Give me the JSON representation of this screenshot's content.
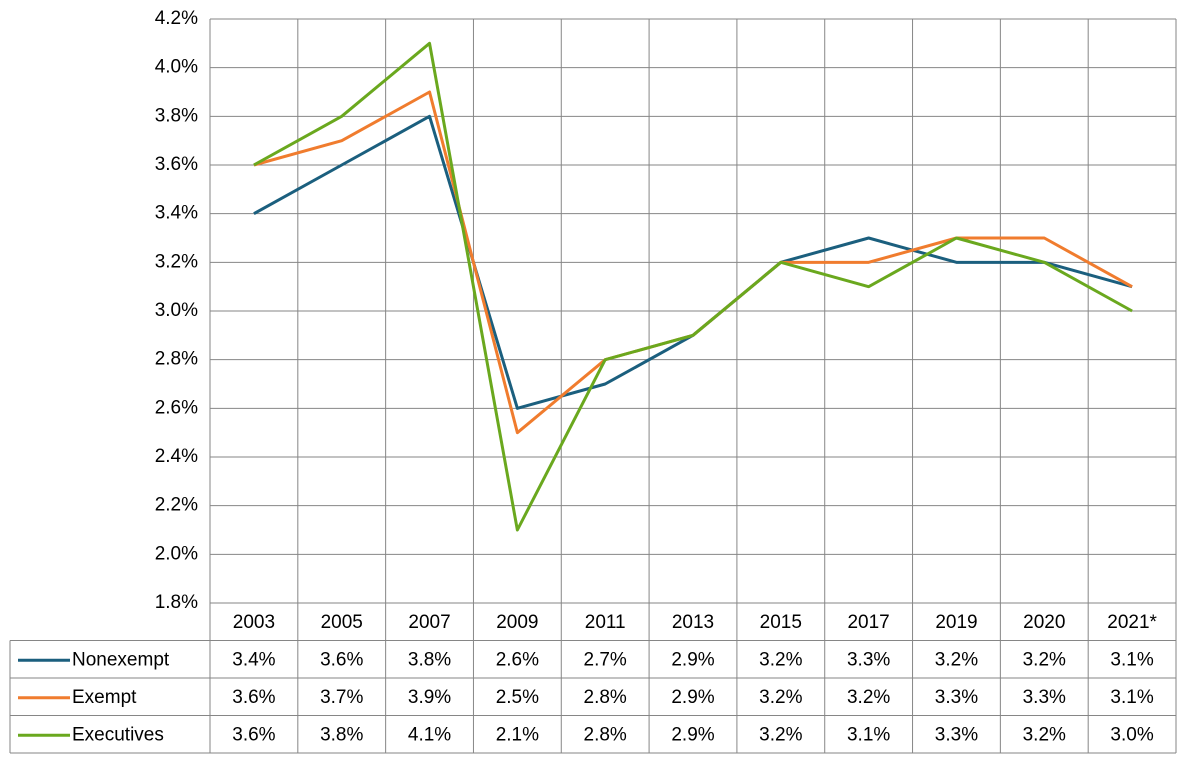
{
  "chart_data": {
    "type": "line",
    "categories": [
      "2003",
      "2005",
      "2007",
      "2009",
      "2011",
      "2013",
      "2015",
      "2017",
      "2019",
      "2020",
      "2021*"
    ],
    "series": [
      {
        "name": "Nonexempt",
        "color": "#1b5f7e",
        "values": [
          3.4,
          3.6,
          3.8,
          2.6,
          2.7,
          2.9,
          3.2,
          3.3,
          3.2,
          3.2,
          3.1
        ],
        "value_labels": [
          "3.4%",
          "3.6%",
          "3.8%",
          "2.6%",
          "2.7%",
          "2.9%",
          "3.2%",
          "3.3%",
          "3.2%",
          "3.2%",
          "3.1%"
        ]
      },
      {
        "name": "Exempt",
        "color": "#f07c2e",
        "values": [
          3.6,
          3.7,
          3.9,
          2.5,
          2.8,
          2.9,
          3.2,
          3.2,
          3.3,
          3.3,
          3.1
        ],
        "value_labels": [
          "3.6%",
          "3.7%",
          "3.9%",
          "2.5%",
          "2.8%",
          "2.9%",
          "3.2%",
          "3.2%",
          "3.3%",
          "3.3%",
          "3.1%"
        ]
      },
      {
        "name": "Executives",
        "color": "#6aa81e",
        "values": [
          3.6,
          3.8,
          4.1,
          2.1,
          2.8,
          2.9,
          3.2,
          3.1,
          3.3,
          3.2,
          3.0
        ],
        "value_labels": [
          "3.6%",
          "3.8%",
          "4.1%",
          "2.1%",
          "2.8%",
          "2.9%",
          "3.2%",
          "3.1%",
          "3.3%",
          "3.2%",
          "3.0%"
        ]
      }
    ],
    "ylim": [
      1.8,
      4.2
    ],
    "yticks": [
      {
        "value": 1.8,
        "label": "1.8%"
      },
      {
        "value": 2.0,
        "label": "2.0%"
      },
      {
        "value": 2.2,
        "label": "2.2%"
      },
      {
        "value": 2.4,
        "label": "2.4%"
      },
      {
        "value": 2.6,
        "label": "2.6%"
      },
      {
        "value": 2.8,
        "label": "2.8%"
      },
      {
        "value": 3.0,
        "label": "3.0%"
      },
      {
        "value": 3.2,
        "label": "3.2%"
      },
      {
        "value": 3.4,
        "label": "3.4%"
      },
      {
        "value": 3.6,
        "label": "3.6%"
      },
      {
        "value": 3.8,
        "label": "3.8%"
      },
      {
        "value": 4.0,
        "label": "4.0%"
      },
      {
        "value": 4.2,
        "label": "4.2%"
      }
    ],
    "grid": true
  }
}
